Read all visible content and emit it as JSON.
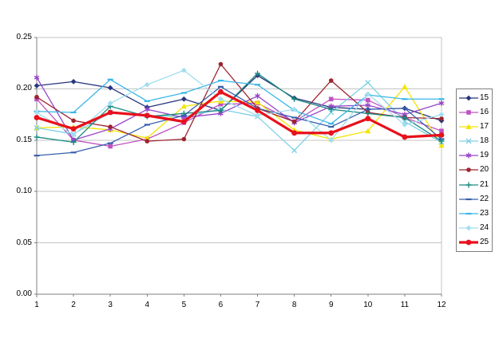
{
  "chart_data": {
    "type": "line",
    "title": "",
    "xlabel": "",
    "ylabel": "",
    "x_categories": [
      "1",
      "2",
      "3",
      "4",
      "5",
      "6",
      "7",
      "8",
      "9",
      "10",
      "11",
      "12"
    ],
    "ylim": [
      0.0,
      0.25
    ],
    "ytick_step": 0.05,
    "ytick_labels": [
      "0.00",
      "0.05",
      "0.10",
      "0.15",
      "0.20",
      "0.25"
    ],
    "grid": "horizontal",
    "gridline_color": "#c3c3c3",
    "axis_color": "#7f7f7f",
    "legend_position": "right",
    "series": [
      {
        "name": "15",
        "color": "#27357E",
        "marker": "diamond",
        "line_width": 1.3,
        "values": [
          0.203,
          0.207,
          0.201,
          0.182,
          0.19,
          0.179,
          0.213,
          0.191,
          0.182,
          0.18,
          0.181,
          0.169
        ]
      },
      {
        "name": "16",
        "color": "#C053C0",
        "marker": "square",
        "line_width": 1.3,
        "values": [
          0.19,
          0.15,
          0.144,
          0.151,
          0.167,
          0.185,
          0.186,
          0.168,
          0.19,
          0.189,
          0.172,
          0.159
        ]
      },
      {
        "name": "17",
        "color": "#F5E400",
        "marker": "triangle",
        "line_width": 1.3,
        "values": [
          0.162,
          0.163,
          0.16,
          0.152,
          0.183,
          0.188,
          0.187,
          0.16,
          0.151,
          0.159,
          0.202,
          0.145
        ]
      },
      {
        "name": "18",
        "color": "#7FD0E4",
        "marker": "x",
        "line_width": 1.3,
        "values": [
          0.162,
          0.156,
          0.177,
          0.174,
          0.173,
          0.18,
          0.173,
          0.14,
          0.177,
          0.206,
          0.168,
          0.148
        ]
      },
      {
        "name": "19",
        "color": "#9846C8",
        "marker": "asterisk",
        "line_width": 1.3,
        "values": [
          0.211,
          0.15,
          0.161,
          0.18,
          0.172,
          0.176,
          0.193,
          0.167,
          0.183,
          0.184,
          0.175,
          0.186
        ]
      },
      {
        "name": "20",
        "color": "#9C2430",
        "marker": "circle",
        "line_width": 1.3,
        "values": [
          0.192,
          0.169,
          0.163,
          0.149,
          0.151,
          0.224,
          0.181,
          0.168,
          0.208,
          0.177,
          0.172,
          0.171
        ]
      },
      {
        "name": "21",
        "color": "#1B8A80",
        "marker": "plus",
        "line_width": 1.3,
        "values": [
          0.153,
          0.148,
          0.183,
          0.173,
          0.176,
          0.179,
          0.215,
          0.19,
          0.18,
          0.176,
          0.172,
          0.149
        ]
      },
      {
        "name": "22",
        "color": "#3860AD",
        "marker": "dash",
        "line_width": 1.3,
        "values": [
          0.135,
          0.138,
          0.147,
          0.165,
          0.174,
          0.202,
          0.181,
          0.172,
          0.163,
          0.18,
          0.181,
          0.151
        ]
      },
      {
        "name": "23",
        "color": "#38B6E8",
        "marker": "dash",
        "line_width": 1.3,
        "values": [
          0.178,
          0.177,
          0.209,
          0.188,
          0.196,
          0.208,
          0.204,
          0.179,
          0.166,
          0.194,
          0.19,
          0.19
        ]
      },
      {
        "name": "24",
        "color": "#A2DEEE",
        "marker": "diamond",
        "line_width": 1.3,
        "values": [
          0.177,
          0.155,
          0.186,
          0.204,
          0.218,
          0.19,
          0.174,
          0.18,
          0.15,
          0.195,
          0.165,
          0.175
        ]
      },
      {
        "name": "25",
        "color": "#E8101C",
        "marker": "circle",
        "line_width": 3.2,
        "values": [
          0.172,
          0.161,
          0.177,
          0.174,
          0.168,
          0.197,
          0.179,
          0.157,
          0.157,
          0.171,
          0.153,
          0.155
        ]
      }
    ]
  }
}
